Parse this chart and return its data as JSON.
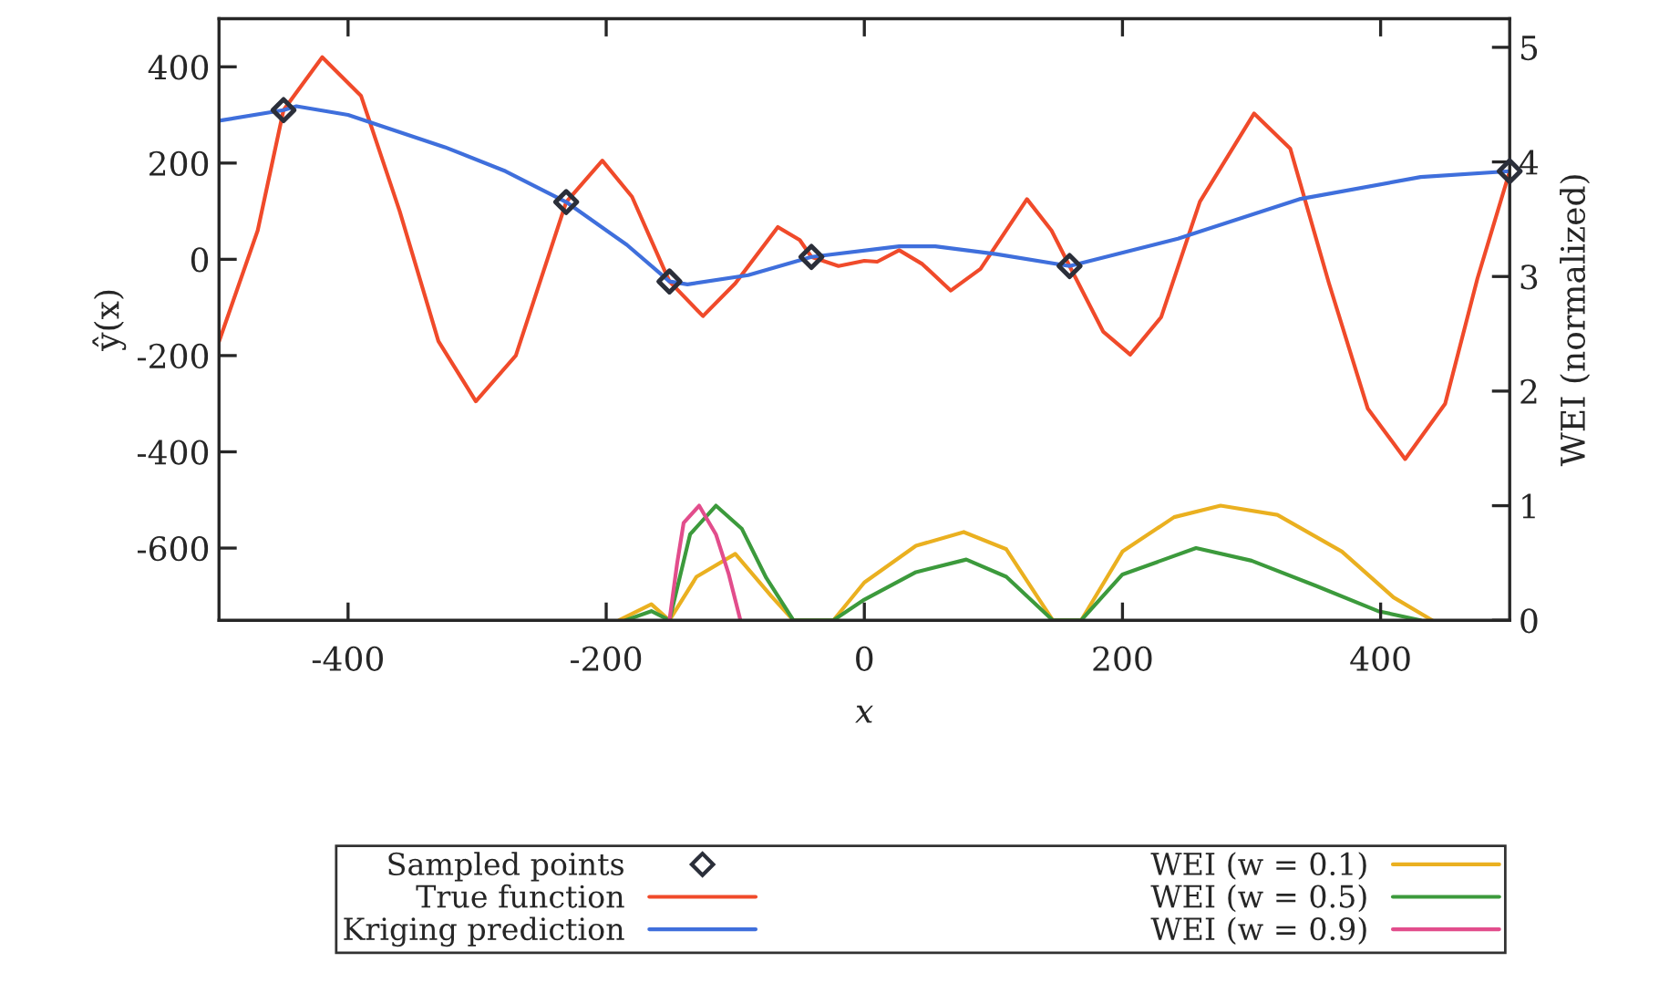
{
  "chart_data": {
    "type": "line",
    "xlabel": "x",
    "ylabel": "ŷ(x)",
    "y2label": "WEI (normalized)",
    "xlim": [
      -500,
      500
    ],
    "xticks": [
      -400,
      -200,
      0,
      200,
      400
    ],
    "ylim": [
      -750,
      500
    ],
    "yticks": [
      -600,
      -400,
      -200,
      0,
      200,
      400
    ],
    "y2lim": [
      0,
      5.25
    ],
    "y2ticks": [
      0,
      1,
      2,
      3,
      4,
      5
    ],
    "legend": "bottom",
    "series": [
      {
        "name": "Sampled points",
        "type": "scatter",
        "marker": "diamond",
        "color": "#2b2f3a",
        "x": [
          -450,
          -231,
          -151,
          -41,
          159,
          500
        ],
        "values": [
          310,
          119,
          -46,
          5,
          -14,
          183
        ]
      },
      {
        "name": "True function",
        "color": "#f04a2a",
        "x": [
          -500,
          -470,
          -450,
          -420,
          -390,
          -360,
          -330,
          -301,
          -270,
          -231,
          -203,
          -180,
          -151,
          -125,
          -100,
          -67,
          -50,
          -41,
          -20,
          0,
          10,
          27,
          45,
          67,
          90,
          126,
          145,
          159,
          185,
          206,
          230,
          260,
          302,
          330,
          360,
          390,
          419,
          450,
          475,
          500
        ],
        "values": [
          -171,
          60,
          310,
          420,
          340,
          100,
          -170,
          -295,
          -200,
          119,
          205,
          130,
          -46,
          -118,
          -50,
          67,
          40,
          5,
          -14,
          -3,
          -5,
          19,
          -10,
          -65,
          -20,
          125,
          60,
          -14,
          -150,
          -198,
          -120,
          120,
          303,
          230,
          -50,
          -310,
          -415,
          -300,
          -40,
          183
        ]
      },
      {
        "name": "Kriging prediction",
        "color": "#3f6fdc",
        "x": [
          -500,
          -450,
          -440,
          -400,
          -325,
          -278,
          -231,
          -184,
          -151,
          -137,
          -90,
          -41,
          27,
          55,
          102,
          159,
          243,
          337,
          431,
          500
        ],
        "values": [
          288,
          310,
          318,
          300,
          233,
          183,
          119,
          30,
          -46,
          -52,
          -33,
          5,
          27,
          27,
          11,
          -14,
          43,
          125,
          171,
          183
        ]
      },
      {
        "name": "WEI (w = 0.1)",
        "axis": "y2",
        "color": "#eab020",
        "x": [
          -190,
          -165,
          -151,
          -130,
          -100,
          -72,
          -55,
          -24,
          0,
          40,
          77,
          110,
          146,
          168,
          200,
          240,
          276,
          320,
          370,
          410,
          440
        ],
        "values": [
          0,
          0.14,
          0,
          0.38,
          0.58,
          0.21,
          0,
          0,
          0.33,
          0.65,
          0.77,
          0.62,
          0,
          0,
          0.6,
          0.9,
          1.0,
          0.92,
          0.6,
          0.2,
          0
        ]
      },
      {
        "name": "WEI (w = 0.5)",
        "axis": "y2",
        "color": "#3c9a3c",
        "x": [
          -185,
          -165,
          -151,
          -135,
          -115,
          -95,
          -76,
          -55,
          -24,
          0,
          40,
          79,
          110,
          146,
          168,
          200,
          257,
          300,
          350,
          398,
          431
        ],
        "values": [
          0,
          0.08,
          0,
          0.75,
          1.0,
          0.8,
          0.37,
          0,
          0,
          0.18,
          0.42,
          0.53,
          0.38,
          0,
          0,
          0.4,
          0.63,
          0.52,
          0.3,
          0.08,
          0
        ]
      },
      {
        "name": "WEI (w = 0.9)",
        "axis": "y2",
        "color": "#e24d8c",
        "x": [
          -151,
          -145,
          -140,
          -128,
          -115,
          -105,
          -96
        ],
        "values": [
          0,
          0.5,
          0.85,
          1.0,
          0.75,
          0.4,
          0
        ]
      }
    ]
  }
}
